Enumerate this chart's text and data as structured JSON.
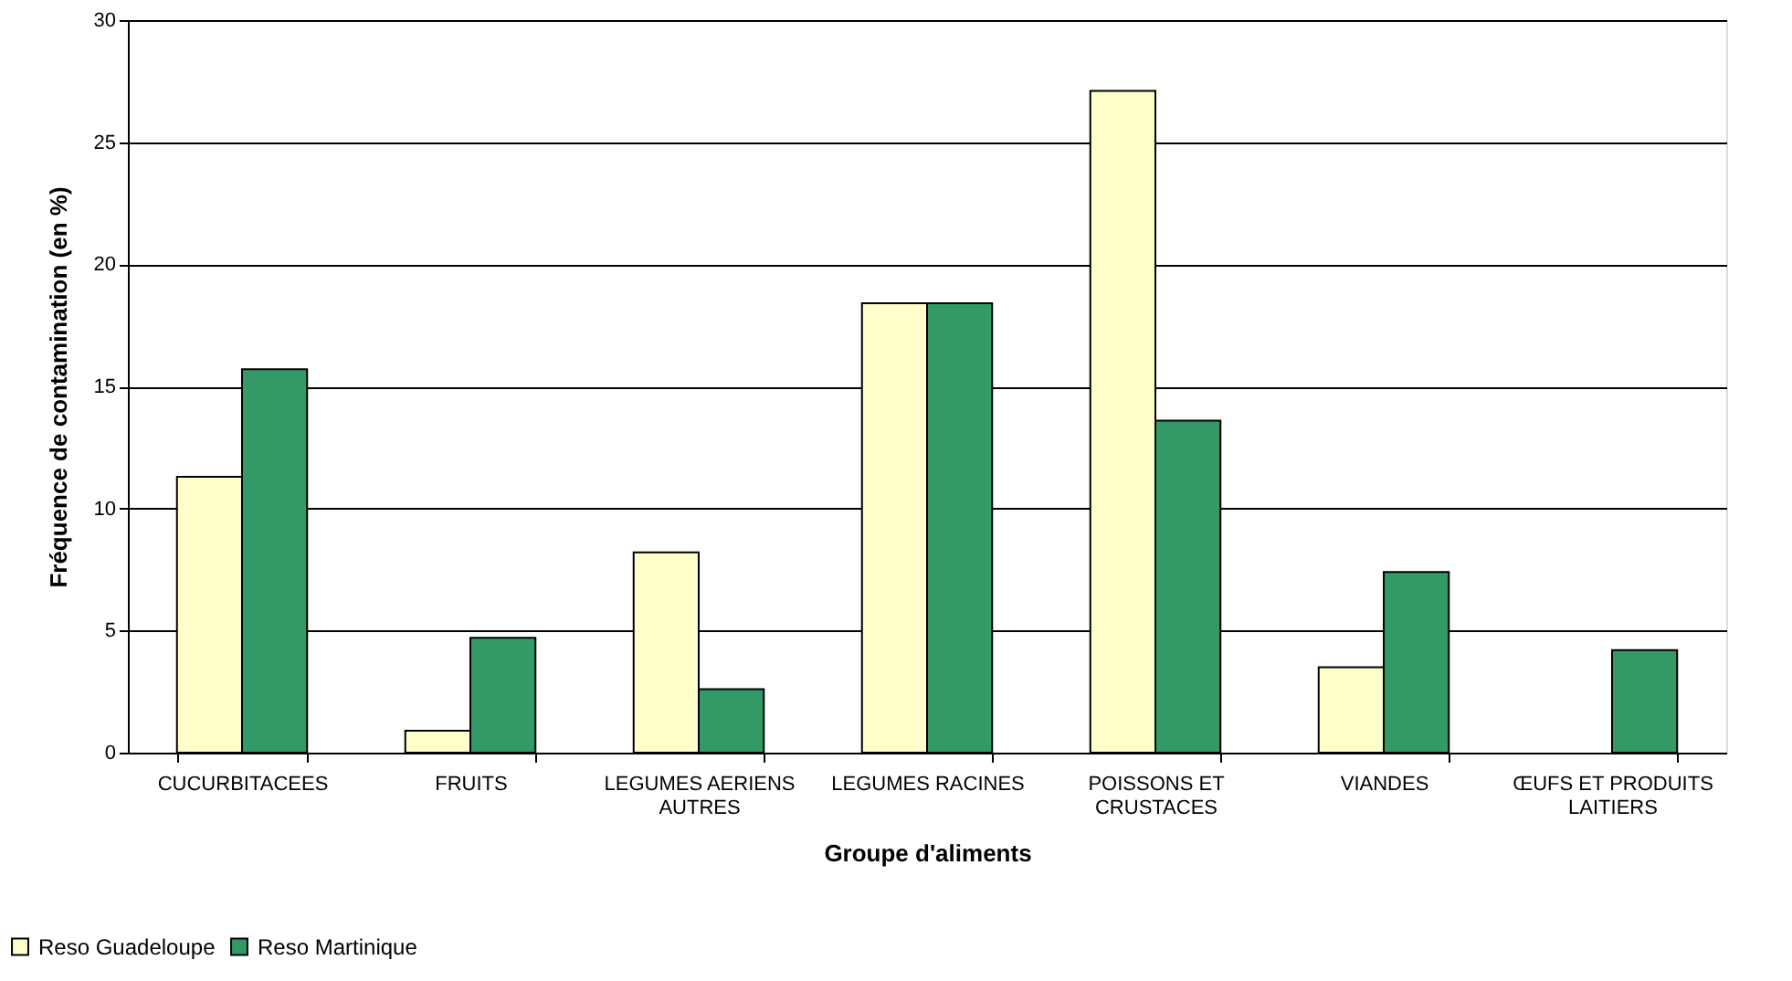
{
  "chart_data": {
    "type": "bar",
    "xlabel": "Groupe d'aliments",
    "ylabel": "Fréquence de contamination (en %)",
    "categories": [
      "CUCURBITACEES",
      "FRUITS",
      "LEGUMES AERIENS AUTRES",
      "LEGUMES RACINES",
      "POISSONS ET CRUSTACES",
      "VIANDES",
      "ŒUFS ET PRODUITS LAITIERS"
    ],
    "series": [
      {
        "name": "Reso Guadeloupe",
        "color": "#ffffcc",
        "values": [
          11.3,
          0.9,
          8.2,
          18.4,
          27.1,
          3.5,
          null
        ]
      },
      {
        "name": "Reso Martinique",
        "color": "#339966",
        "values": [
          15.7,
          4.7,
          2.6,
          18.4,
          13.6,
          7.4,
          4.2
        ]
      }
    ],
    "ylim": [
      0,
      30
    ],
    "yticks": [
      0,
      5,
      10,
      15,
      20,
      25,
      30
    ],
    "grid": "y",
    "legend": "bottom left"
  }
}
